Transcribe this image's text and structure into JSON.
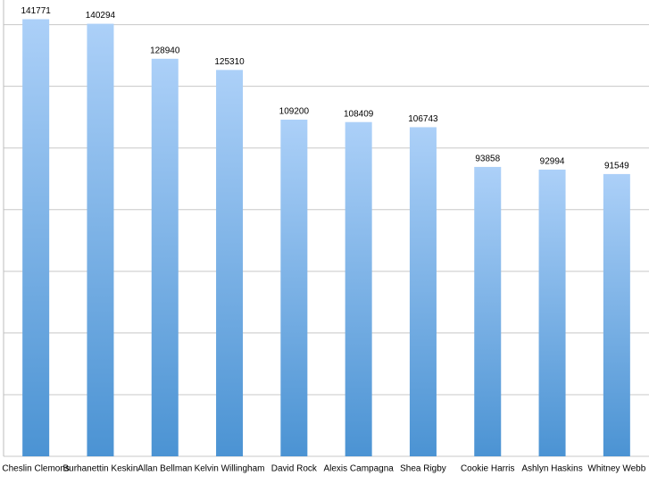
{
  "chart_data": {
    "type": "bar",
    "categories": [
      "Cheslin Clemons",
      "Burhanettin Keskin",
      "Allan Bellman",
      "Kelvin Willingham",
      "David Rock",
      "Alexis Campagna",
      "Shea Rigby",
      "Cookie Harris",
      "Ashlyn Haskins",
      "Whitney Webb"
    ],
    "values": [
      141771,
      140294,
      128940,
      125310,
      109200,
      108409,
      106743,
      93858,
      92994,
      91549
    ],
    "color_top": "#acd0f8",
    "color_bottom": "#4b93d3",
    "ylim": [
      0,
      148000
    ],
    "yticks": [
      0,
      20000,
      40000,
      60000,
      80000,
      100000,
      120000,
      140000
    ],
    "grid": true
  }
}
